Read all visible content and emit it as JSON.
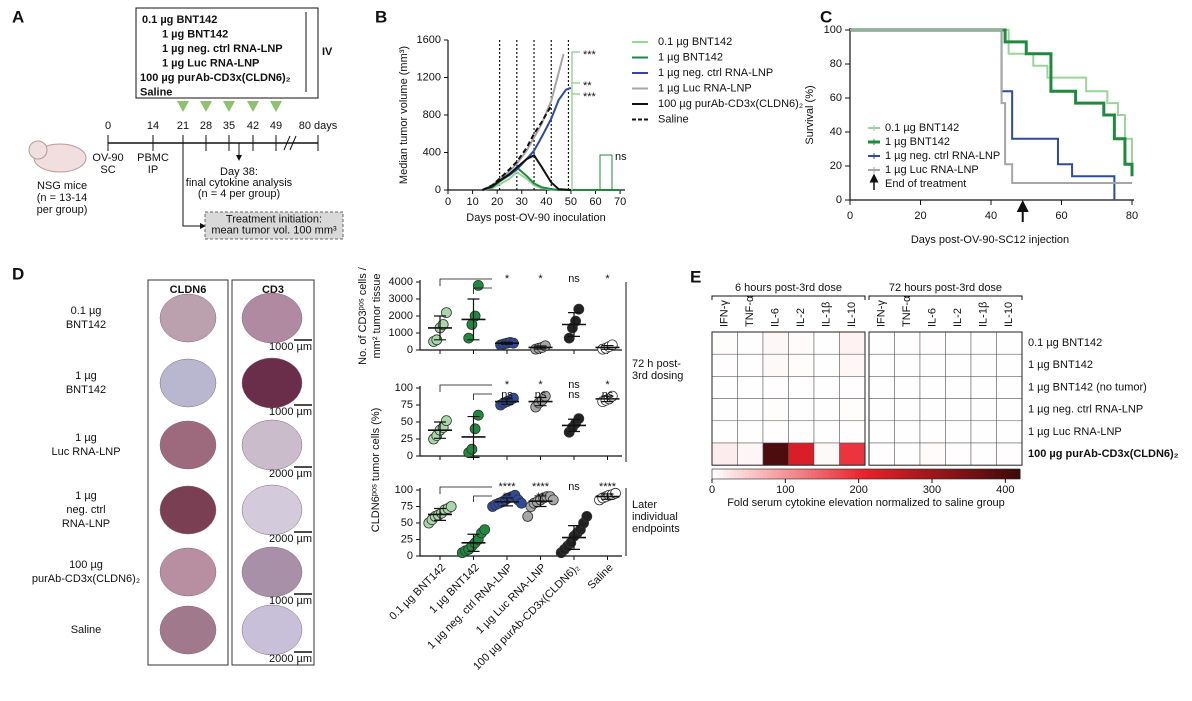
{
  "panel_labels": [
    "A",
    "B",
    "C",
    "D",
    "E"
  ],
  "schematic": {
    "treatments": [
      "0.1 µg BNT142",
      "1 µg BNT142",
      "1 µg neg. ctrl RNA-LNP",
      "1 µg Luc RNA-LNP",
      "100 µg purAb-CD3x(CLDN6)₂",
      "Saline"
    ],
    "route": "IV",
    "timeline_days": [
      "0",
      "14",
      "21",
      "28",
      "35",
      "42",
      "49",
      "80 days"
    ],
    "mouse_label": [
      "NSG mice",
      "(n = 13-14",
      "per group)"
    ],
    "inoculation": [
      "OV-90",
      "SC"
    ],
    "pbmc": [
      "PBMC",
      "IP"
    ],
    "cytokine_analysis": [
      "Day 38:",
      "final cytokine analysis",
      "(n = 4 per group)"
    ],
    "treatment_start": [
      "Treatment initiation:",
      "mean tumor vol. 100 mm³"
    ]
  },
  "histology": {
    "columns": [
      "CLDN6",
      "CD3"
    ],
    "rows": [
      {
        "label": [
          "0.1 µg",
          "BNT142"
        ],
        "scale_bar": "1000 µm"
      },
      {
        "label": [
          "1 µg",
          "BNT142"
        ],
        "scale_bar": "1000 µm"
      },
      {
        "label": [
          "1 µg",
          "Luc RNA-LNP"
        ],
        "scale_bar": "2000 µm"
      },
      {
        "label": [
          "1 µg",
          "neg. ctrl",
          "RNA-LNP"
        ],
        "scale_bar": "2000 µm"
      },
      {
        "label": [
          "100 µg",
          "purAb-CD3x(CLDN6)₂"
        ],
        "scale_bar": "1000 µm"
      },
      {
        "label": [
          "Saline"
        ],
        "scale_bar": "2000 µm"
      }
    ]
  },
  "chart_data": [
    {
      "type": "line",
      "x_label": "Days post-OV-90 inoculation",
      "y_label": "Median tumor volume (mm³)",
      "xlim": [
        0,
        72
      ],
      "xticks": [
        0,
        10,
        20,
        30,
        40,
        50,
        60,
        70
      ],
      "ylim": [
        0,
        1600
      ],
      "yticks": [
        0,
        400,
        800,
        1200,
        1600
      ],
      "treatment_days": [
        21,
        28,
        35,
        42,
        49
      ],
      "annotations": [
        "***",
        "**",
        "***",
        "ns"
      ],
      "series": [
        {
          "name": "0.1 µg BNT142",
          "color": "#9bd49b",
          "x": [
            14,
            18,
            21,
            25,
            28,
            32,
            35,
            38,
            42,
            45,
            50,
            55,
            60,
            65,
            70
          ],
          "values": [
            0,
            20,
            60,
            120,
            190,
            120,
            50,
            20,
            5,
            0,
            0,
            0,
            0,
            0,
            0
          ]
        },
        {
          "name": "1 µg BNT142",
          "color": "#1f8a3e",
          "x": [
            14,
            18,
            21,
            25,
            28,
            32,
            35,
            38,
            42,
            45,
            50,
            55,
            60,
            65,
            70
          ],
          "values": [
            0,
            30,
            90,
            160,
            240,
            150,
            70,
            30,
            10,
            0,
            0,
            0,
            0,
            0,
            0
          ]
        },
        {
          "name": "1 µg neg. ctrl RNA-LNP",
          "color": "#2e4a9e",
          "x": [
            14,
            18,
            21,
            25,
            28,
            32,
            35,
            38,
            42,
            45,
            48,
            50
          ],
          "values": [
            0,
            40,
            100,
            160,
            220,
            330,
            420,
            560,
            760,
            960,
            1070,
            1090
          ]
        },
        {
          "name": "1 µg Luc RNA-LNP",
          "color": "#a6a6a6",
          "x": [
            14,
            18,
            21,
            25,
            28,
            32,
            35,
            38,
            42,
            45,
            47
          ],
          "values": [
            0,
            50,
            120,
            200,
            280,
            420,
            560,
            700,
            950,
            1250,
            1450
          ]
        },
        {
          "name": "100 µg purAb-CD3x(CLDN6)₂",
          "color": "#111111",
          "x": [
            14,
            18,
            21,
            25,
            28,
            32,
            35,
            38,
            42,
            45,
            50
          ],
          "values": [
            0,
            40,
            100,
            170,
            240,
            330,
            370,
            250,
            80,
            10,
            0
          ]
        },
        {
          "name": "Saline",
          "color": "#111111",
          "dashed": true,
          "x": [
            14,
            18,
            21,
            25,
            28,
            32,
            35,
            38,
            42
          ],
          "values": [
            0,
            50,
            120,
            220,
            300,
            450,
            600,
            720,
            900
          ]
        }
      ]
    },
    {
      "type": "step",
      "x_label": "Days post-OV-90-SC12 injection",
      "y_label": "Survival (%)",
      "xlim": [
        0,
        80
      ],
      "xticks": [
        0,
        20,
        40,
        60,
        80
      ],
      "ylim": [
        0,
        100
      ],
      "yticks": [
        0,
        20,
        40,
        60,
        80,
        100
      ],
      "end_of_treatment": 49,
      "note": "End of treatment",
      "series": [
        {
          "name": "0.1 µg BNT142",
          "color": "#9bd49b",
          "x": [
            0,
            45,
            52,
            56,
            67,
            73,
            76,
            78,
            80
          ],
          "values": [
            100,
            86,
            79,
            72,
            64,
            57,
            50,
            36,
            21
          ]
        },
        {
          "name": "1 µg BNT142",
          "color": "#1f8a3e",
          "x": [
            0,
            44,
            50,
            57,
            64,
            72,
            75,
            78,
            80
          ],
          "values": [
            100,
            93,
            86,
            64,
            57,
            50,
            36,
            21,
            14
          ]
        },
        {
          "name": "1 µg neg. ctrl RNA-LNP",
          "color": "#2e4a9e",
          "x": [
            0,
            43,
            46,
            59,
            63,
            75
          ],
          "values": [
            100,
            64,
            36,
            21,
            14,
            0
          ]
        },
        {
          "name": "1 µg Luc RNA-LNP",
          "color": "#a6a6a6",
          "x": [
            0,
            43,
            44,
            46,
            80
          ],
          "values": [
            100,
            57,
            21,
            10,
            10
          ]
        }
      ]
    },
    {
      "type": "dot",
      "y_label": [
        "No. of CD3ᵖᵒˢ cells /",
        "mm² tumor tissue"
      ],
      "ylim": [
        0,
        4000
      ],
      "yticks": [
        0,
        1000,
        2000,
        3000,
        4000
      ],
      "annotations": [
        [
          "*",
          "*",
          "ns",
          "*"
        ]
      ],
      "groups": [
        {
          "color": "#a8d8a8",
          "points": [
            500,
            600,
            1300,
            1500,
            2200
          ],
          "mean": 1300,
          "sd": 700
        },
        {
          "color": "#1f8a3e",
          "points": [
            700,
            1500,
            2000,
            3800
          ],
          "mean": 1800,
          "sd": 1200
        },
        {
          "color": "#2e4a9e",
          "points": [
            300,
            350,
            400,
            450,
            400
          ],
          "mean": 400,
          "sd": 60
        },
        {
          "color": "#a6a6a6",
          "points": [
            50,
            100,
            150,
            250
          ],
          "mean": 150,
          "sd": 90
        },
        {
          "color": "#222222",
          "points": [
            700,
            1300,
            1700,
            2400
          ],
          "mean": 1500,
          "sd": 700
        },
        {
          "color": "#ffffff",
          "points": [
            50,
            100,
            200,
            300
          ],
          "mean": 150,
          "sd": 110
        }
      ],
      "bracket_label": [
        "72 h post-",
        "3rd dosing"
      ]
    },
    {
      "type": "dot",
      "y_label": [
        "CLDN6ᵖᵒˢ tumor cells (%)"
      ],
      "ylim": [
        0,
        100
      ],
      "yticks": [
        0,
        25,
        50,
        75,
        100
      ],
      "annotations": [
        [
          "*",
          "*",
          "ns",
          "*"
        ],
        [
          "ns",
          "ns",
          "ns",
          "ns"
        ]
      ],
      "groups": [
        {
          "color": "#a8d8a8",
          "points": [
            25,
            30,
            38,
            42,
            52
          ],
          "mean": 38,
          "sd": 12
        },
        {
          "color": "#1f8a3e",
          "points": [
            5,
            10,
            40,
            60
          ],
          "mean": 28,
          "sd": 30
        },
        {
          "color": "#2e4a9e",
          "points": [
            75,
            78,
            80,
            82,
            85
          ],
          "mean": 80,
          "sd": 4
        },
        {
          "color": "#a6a6a6",
          "points": [
            72,
            78,
            82,
            88
          ],
          "mean": 80,
          "sd": 6
        },
        {
          "color": "#222222",
          "points": [
            35,
            42,
            48,
            55
          ],
          "mean": 45,
          "sd": 9
        },
        {
          "color": "#ffffff",
          "points": [
            80,
            82,
            84,
            88
          ],
          "mean": 84,
          "sd": 4
        }
      ]
    },
    {
      "type": "dot",
      "ylim": [
        0,
        100
      ],
      "yticks": [
        0,
        25,
        50,
        75,
        100
      ],
      "annotations": [
        [
          "****",
          "****",
          "ns",
          "****"
        ],
        [
          "**",
          "**",
          null,
          "***"
        ]
      ],
      "categories": [
        "0.1 µg BNT142",
        "1 µg BNT142",
        "1 µg neg. ctrl RNA-LNP",
        "1 µg Luc RNA-LNP",
        "100 µg purAb-CD3x(CLDN6)₂",
        "Saline"
      ],
      "groups": [
        {
          "color": "#a8d8a8",
          "points": [
            50,
            55,
            60,
            62,
            65,
            70,
            72,
            75
          ],
          "mean": 63,
          "sd": 9
        },
        {
          "color": "#1f8a3e",
          "points": [
            5,
            8,
            10,
            15,
            20,
            25,
            35,
            40
          ],
          "mean": 20,
          "sd": 13
        },
        {
          "color": "#2e4a9e",
          "points": [
            75,
            78,
            80,
            82,
            85,
            88,
            90,
            92,
            85,
            80
          ],
          "mean": 82,
          "sd": 6
        },
        {
          "color": "#a6a6a6",
          "points": [
            60,
            75,
            80,
            82,
            85,
            88,
            90,
            90,
            85
          ],
          "mean": 83,
          "sd": 8
        },
        {
          "color": "#222222",
          "points": [
            5,
            10,
            15,
            20,
            30,
            35,
            40,
            50,
            60
          ],
          "mean": 28,
          "sd": 18
        },
        {
          "color": "#ffffff",
          "points": [
            85,
            88,
            90,
            92,
            93,
            95
          ],
          "mean": 90,
          "sd": 4
        }
      ],
      "bracket_label": [
        "Later",
        "individual",
        "endpoints"
      ]
    },
    {
      "type": "heatmap",
      "column_groups": [
        "6 hours post-3rd dose",
        "72 hours post-3rd dose"
      ],
      "columns": [
        "IFN-γ",
        "TNF-α",
        "IL-6",
        "IL-2",
        "IL-1β",
        "IL-10"
      ],
      "rows": [
        "0.1 µg BNT142",
        "1 µg BNT142",
        "1 µg BNT142 (no tumor)",
        "1 µg neg. ctrl RNA-LNP",
        "1 µg Luc RNA-LNP",
        "100 µg purAb-CD3x(CLDN6)₂"
      ],
      "values": [
        [
          3,
          1,
          8,
          4,
          1,
          12,
          1,
          1,
          2,
          1,
          1,
          1
        ],
        [
          2,
          1,
          6,
          3,
          1,
          8,
          1,
          1,
          1,
          1,
          1,
          1
        ],
        [
          1,
          1,
          2,
          1,
          1,
          2,
          1,
          1,
          1,
          1,
          1,
          1
        ],
        [
          1,
          1,
          3,
          1,
          1,
          3,
          1,
          1,
          1,
          1,
          1,
          1
        ],
        [
          1,
          1,
          2,
          1,
          1,
          2,
          1,
          1,
          1,
          1,
          1,
          1
        ],
        [
          18,
          9,
          400,
          230,
          6,
          190,
          2,
          1,
          4,
          2,
          1,
          2
        ]
      ],
      "colors": [
        "#ffffff",
        "#e8202a",
        "#3d0a0a"
      ],
      "colorbar_lim": [
        0,
        420
      ],
      "colorbar_ticks": [
        0,
        100,
        200,
        300,
        400
      ],
      "colorbar_label": "Fold serum cytokine elevation normalized to saline group"
    }
  ]
}
